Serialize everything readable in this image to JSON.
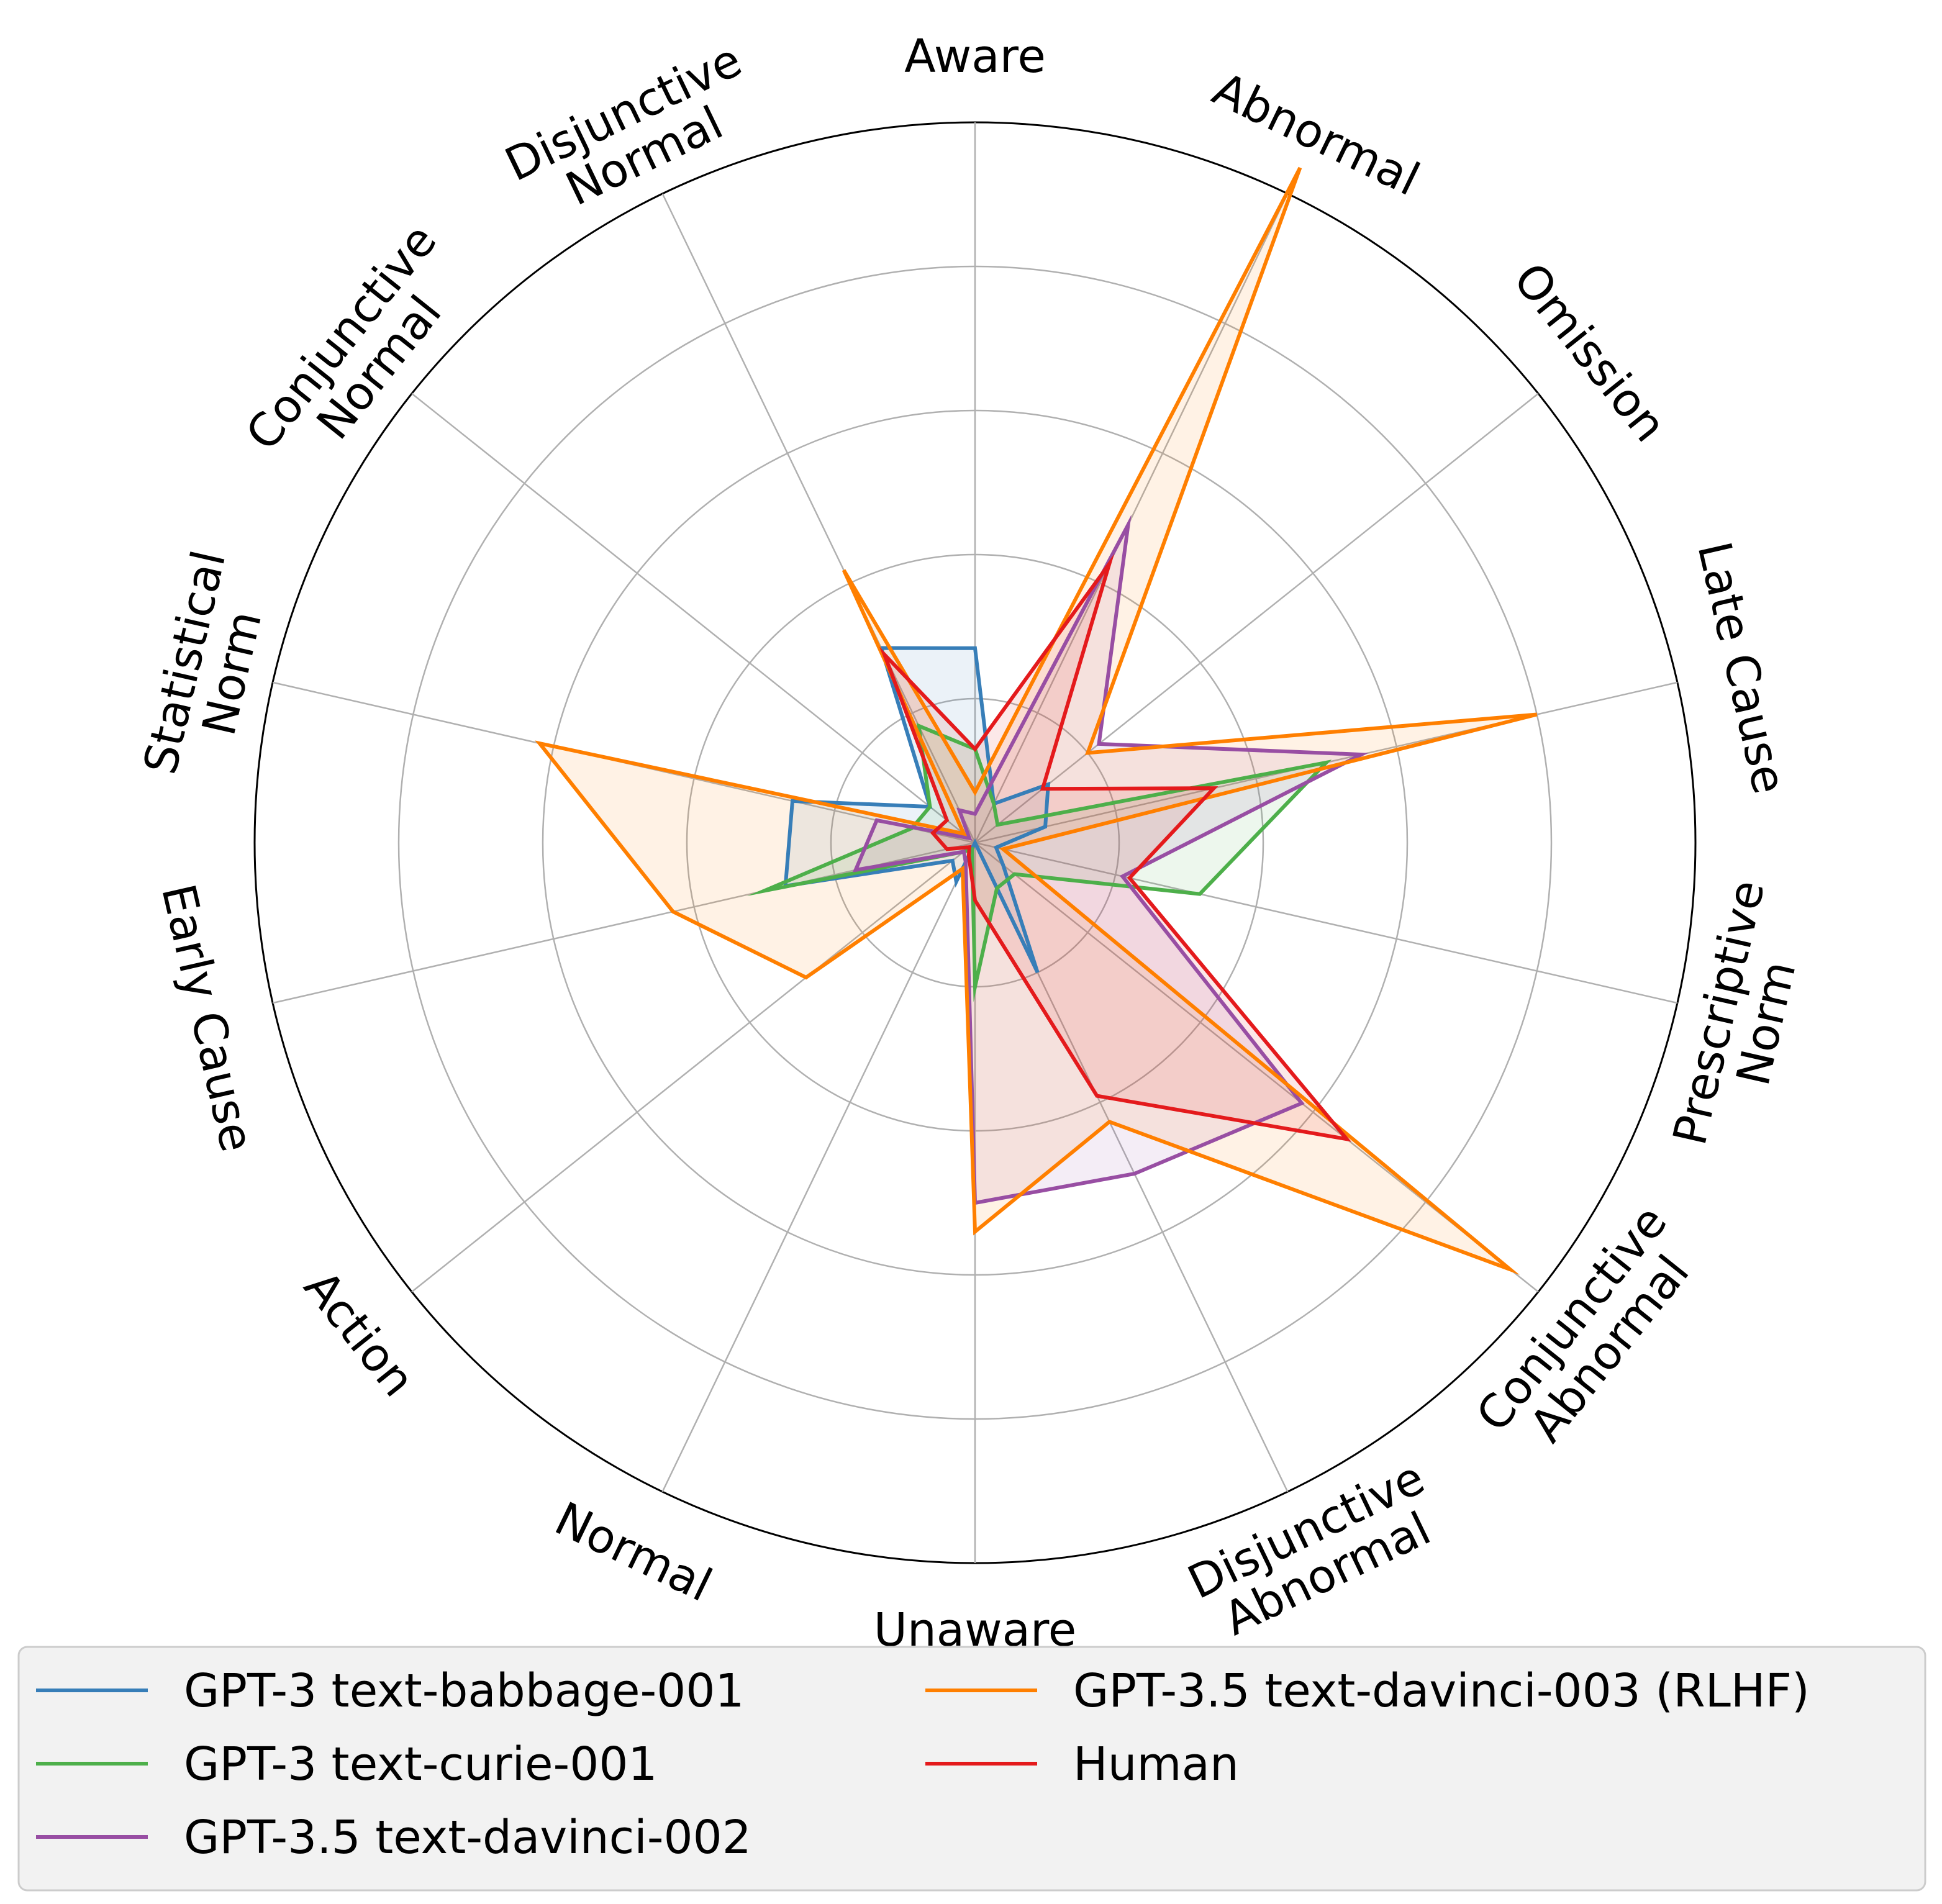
{
  "chart_data": {
    "type": "radar",
    "title": "",
    "grid": true,
    "rmax": 1.0,
    "rticks": [
      0.2,
      0.4,
      0.6,
      0.8,
      1.0
    ],
    "categories": [
      "Aware",
      "Abnormal",
      "Omission",
      "Late Cause",
      "Prescriptive\nNorm",
      "Conjunctive\nAbnormal",
      "Disjunctive\nAbnormal",
      "Unaware",
      "Normal",
      "Action",
      "Early Cause",
      "Statistical\nNorm",
      "Conjunctive\nNormal",
      "Disjunctive\nNormal"
    ],
    "series": [
      {
        "name": "GPT-3 text-babbage-001",
        "color": "#377eb8",
        "values": [
          0.27,
          0.06,
          0.13,
          0.1,
          0.03,
          0.05,
          0.2,
          0.0,
          0.06,
          0.04,
          0.27,
          0.26,
          0.08,
          0.3
        ]
      },
      {
        "name": "GPT-3 text-curie-001",
        "color": "#4daf4a",
        "values": [
          0.13,
          0.06,
          0.04,
          0.5,
          0.32,
          0.07,
          0.07,
          0.2,
          0.01,
          0.02,
          0.3,
          0.09,
          0.08,
          0.18
        ]
      },
      {
        "name": "GPT-3.5 text-davinci-002",
        "color": "#984ea3",
        "values": [
          0.04,
          0.49,
          0.22,
          0.55,
          0.21,
          0.58,
          0.51,
          0.5,
          0.03,
          0.02,
          0.17,
          0.14,
          0.01,
          0.05
        ]
      },
      {
        "name": "GPT-3.5 text-davinci-003 (RLHF)",
        "color": "#ff7f00",
        "values": [
          0.07,
          1.04,
          0.2,
          0.8,
          0.04,
          0.95,
          0.43,
          0.54,
          0.04,
          0.3,
          0.43,
          0.62,
          0.02,
          0.42
        ]
      },
      {
        "name": "Human",
        "color": "#e41a1c",
        "values": [
          0.13,
          0.43,
          0.12,
          0.34,
          0.22,
          0.66,
          0.39,
          0.08,
          0.02,
          0.01,
          0.04,
          0.06,
          0.05,
          0.29
        ]
      }
    ],
    "legend": "bottom"
  }
}
